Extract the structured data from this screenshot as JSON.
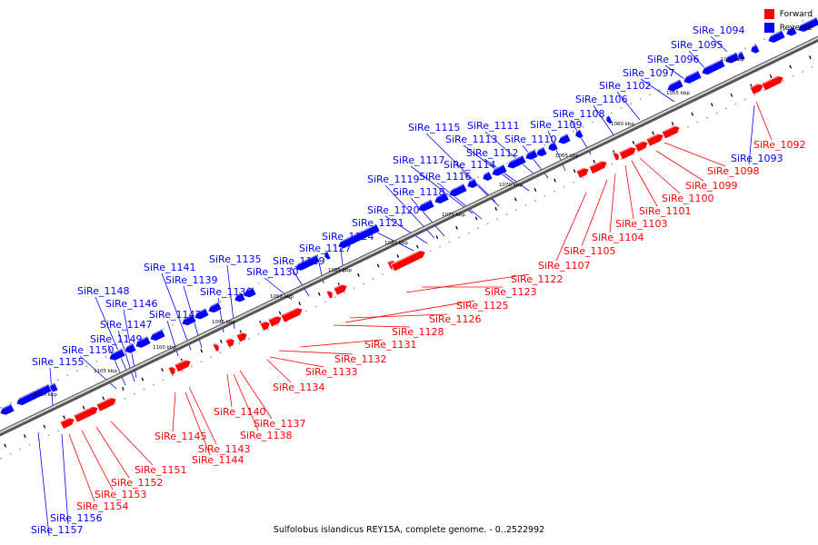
{
  "colors": {
    "forward": "#ff0000",
    "reverse": "#0000ff"
  },
  "legend": [
    {
      "label": "Forward",
      "color": "#ff0000"
    },
    {
      "label": "Reverse",
      "color": "#0000ff"
    }
  ],
  "footer": "Sulfolobus islandicus REY15A, complete genome. - 0..2522992",
  "scale_labels": [
    "1050 kbp",
    "1055 kbp",
    "1060 kbp",
    "1065 kbp",
    "1070 kbp",
    "1075 kbp",
    "1080 kbp",
    "1085 kbp",
    "1090 kbp",
    "1095 kbp",
    "1100 kbp",
    "1105 kbp",
    "1110 kbp"
  ],
  "reverse_labels": [
    "SiRe_1094",
    "SiRe_1095",
    "SiRe_1096",
    "SiRe_1097",
    "SiRe_1102",
    "SiRe_1106",
    "SiRe_1108",
    "SiRe_1109",
    "SiRe_1111",
    "SiRe_1110",
    "SiRe_1113",
    "SiRe_1112",
    "SiRe_1115",
    "SiRe_1114",
    "SiRe_1117",
    "SiRe_1116",
    "SiRe_1119",
    "SiRe_1118",
    "SiRe_1120",
    "SiRe_1121",
    "SiRe_1124",
    "SiRe_1127",
    "SiRe_1129",
    "SiRe_1130",
    "SiRe_1135",
    "SiRe_1136",
    "SiRe_1141",
    "SiRe_1139",
    "SiRe_1142",
    "SiRe_1148",
    "SiRe_1146",
    "SiRe_1147",
    "SiRe_1149",
    "SiRe_1150",
    "SiRe_1155",
    "SiRe_1093",
    "SiRe_1156",
    "SiRe_1157"
  ],
  "forward_labels": [
    "SiRe_1092",
    "SiRe_1098",
    "SiRe_1099",
    "SiRe_1100",
    "SiRe_1101",
    "SiRe_1103",
    "SiRe_1104",
    "SiRe_1105",
    "SiRe_1107",
    "SiRe_1122",
    "SiRe_1123",
    "SiRe_1125",
    "SiRe_1126",
    "SiRe_1128",
    "SiRe_1131",
    "SiRe_1132",
    "SiRe_1133",
    "SiRe_1134",
    "SiRe_1137",
    "SiRe_1138",
    "SiRe_1140",
    "SiRe_1143",
    "SiRe_1144",
    "SiRe_1145",
    "SiRe_1151",
    "SiRe_1152",
    "SiRe_1153",
    "SiRe_1154"
  ]
}
